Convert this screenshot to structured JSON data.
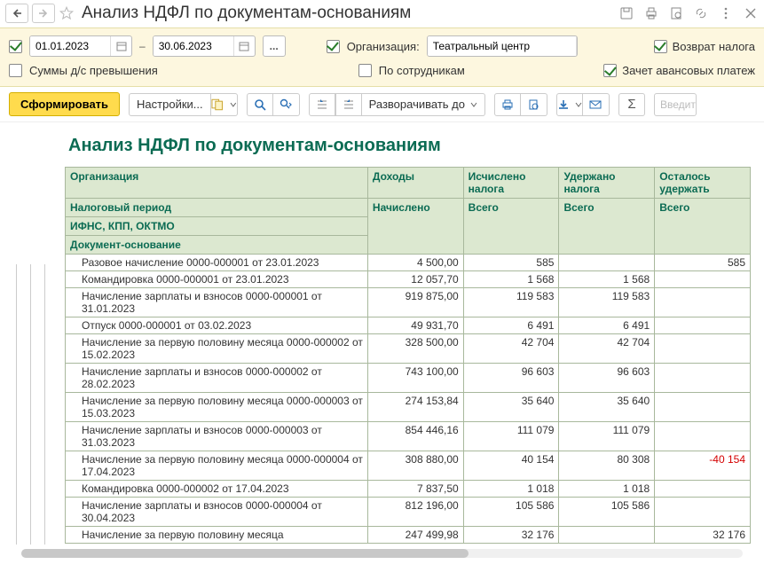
{
  "title": "Анализ НДФЛ по документам-основаниям",
  "filter": {
    "date_from": "01.01.2023",
    "date_to": "30.06.2023",
    "org_label": "Организация:",
    "org_value": "Театральный центр",
    "return_tax": "Возврат налога",
    "advance_offset": "Зачет авансовых платеж",
    "sums_excess": "Суммы д/с превышения",
    "by_employees": "По сотрудникам"
  },
  "toolbar": {
    "generate": "Сформировать",
    "settings": "Настройки...",
    "expand": "Разворачивать до",
    "search_placeholder": "Введит"
  },
  "report": {
    "title": "Анализ НДФЛ по документам-основаниям",
    "head": {
      "org": "Организация",
      "income": "Доходы",
      "calc": "Исчислено налога",
      "withheld": "Удержано налога",
      "remain": "Осталось удержать",
      "period": "Налоговый период",
      "accrued": "Начислено",
      "total": "Всего",
      "ifns": "ИФНС, КПП, ОКТМО",
      "docbase": "Документ-основание"
    },
    "rows": [
      {
        "doc": "Разовое начисление 0000-000001 от 23.01.2023",
        "income": "4 500,00",
        "calc": "585",
        "withheld": "",
        "remain": "585"
      },
      {
        "doc": "Командировка 0000-000001 от 23.01.2023",
        "income": "12 057,70",
        "calc": "1 568",
        "withheld": "1 568",
        "remain": ""
      },
      {
        "doc": "Начисление зарплаты и взносов 0000-000001 от 31.01.2023",
        "income": "919 875,00",
        "calc": "119 583",
        "withheld": "119 583",
        "remain": ""
      },
      {
        "doc": "Отпуск 0000-000001 от 03.02.2023",
        "income": "49 931,70",
        "calc": "6 491",
        "withheld": "6 491",
        "remain": ""
      },
      {
        "doc": "Начисление за первую половину месяца 0000-000002 от 15.02.2023",
        "income": "328 500,00",
        "calc": "42 704",
        "withheld": "42 704",
        "remain": ""
      },
      {
        "doc": "Начисление зарплаты и взносов 0000-000002 от 28.02.2023",
        "income": "743 100,00",
        "calc": "96 603",
        "withheld": "96 603",
        "remain": ""
      },
      {
        "doc": "Начисление за первую половину месяца 0000-000003 от 15.03.2023",
        "income": "274 153,84",
        "calc": "35 640",
        "withheld": "35 640",
        "remain": ""
      },
      {
        "doc": "Начисление зарплаты и взносов 0000-000003 от 31.03.2023",
        "income": "854 446,16",
        "calc": "111 079",
        "withheld": "111 079",
        "remain": ""
      },
      {
        "doc": "Начисление за первую половину месяца 0000-000004 от 17.04.2023",
        "income": "308 880,00",
        "calc": "40 154",
        "withheld": "80 308",
        "remain": "-40 154",
        "neg": true
      },
      {
        "doc": "Командировка 0000-000002 от 17.04.2023",
        "income": "7 837,50",
        "calc": "1 018",
        "withheld": "1 018",
        "remain": ""
      },
      {
        "doc": "Начисление зарплаты и взносов 0000-000004 от 30.04.2023",
        "income": "812 196,00",
        "calc": "105 586",
        "withheld": "105 586",
        "remain": ""
      },
      {
        "doc": "Начисление за первую половину месяца",
        "income": "247 499,98",
        "calc": "32 176",
        "withheld": "",
        "remain": "32 176"
      }
    ]
  }
}
